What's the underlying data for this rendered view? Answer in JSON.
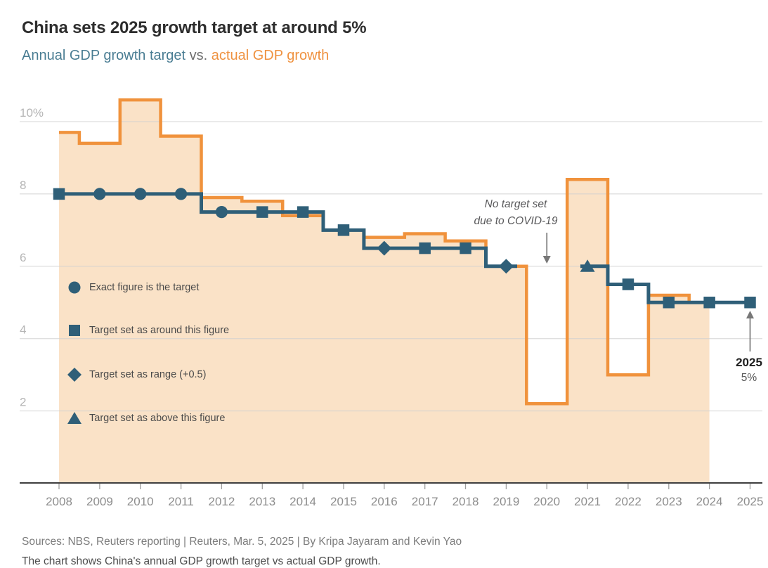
{
  "header": {
    "title": "China sets 2025 growth target at around 5%",
    "subtitle_target": "Annual GDP growth target",
    "subtitle_vs": " vs. ",
    "subtitle_actual": "actual GDP growth"
  },
  "palette": {
    "subtitle_target": "#4a7d93",
    "subtitle_actual": "#ef9240",
    "grid_line": "#cfcfcf",
    "axis_line": "#3f3f3f",
    "axis_tick": "#9e9e9e",
    "y_label": "#b5b5b5",
    "x_label": "#8d8d8d",
    "arrow": "#777777"
  },
  "chart_data": {
    "type": "line",
    "subtype": "center-step line with step-area",
    "x": [
      2008,
      2009,
      2010,
      2011,
      2012,
      2013,
      2014,
      2015,
      2016,
      2017,
      2018,
      2019,
      2020,
      2021,
      2022,
      2023,
      2024,
      2025
    ],
    "ylim": [
      0,
      10.6
    ],
    "grid": true,
    "yticks": [
      {
        "value": 10,
        "label": "10%"
      },
      {
        "value": 8,
        "label": "8"
      },
      {
        "value": 6,
        "label": "6"
      },
      {
        "value": 4,
        "label": "4"
      },
      {
        "value": 2,
        "label": "2"
      }
    ],
    "series": [
      {
        "name": "Annual GDP growth target",
        "color": "#2f5f78",
        "values": [
          8,
          8,
          8,
          8,
          7.5,
          7.5,
          7.5,
          7,
          6.5,
          6.5,
          6.5,
          6,
          null,
          6,
          5.5,
          5,
          5,
          5
        ],
        "markers": [
          "square",
          "circle",
          "circle",
          "circle",
          "circle",
          "square",
          "square",
          "square",
          "diamond",
          "square",
          "square",
          "diamond",
          null,
          "triangle",
          "square",
          "square",
          "square",
          "square"
        ],
        "gap_note": "no target set in 2020"
      },
      {
        "name": "actual GDP growth",
        "color": "#f0923c",
        "fill": "#fae2c7",
        "values": [
          9.7,
          9.4,
          10.6,
          9.6,
          7.9,
          7.8,
          7.4,
          7,
          6.8,
          6.9,
          6.7,
          6,
          2.2,
          8.4,
          3,
          5.2,
          5,
          null
        ]
      }
    ],
    "legend_position": "inside-left",
    "legend": [
      {
        "marker": "circle",
        "label": "Exact figure is the target"
      },
      {
        "marker": "square",
        "label": "Target set as around this figure"
      },
      {
        "marker": "diamond",
        "label": "Target set as range (+0.5)"
      },
      {
        "marker": "triangle",
        "label": "Target set as above this figure"
      }
    ],
    "annotations": {
      "covid": {
        "lines": [
          "No target set",
          "due to COVID-19"
        ],
        "year": 2020
      },
      "latest": {
        "title": "2025",
        "value": "5%",
        "year": 2025
      }
    }
  },
  "footer": {
    "sources": "Sources: NBS, Reuters reporting | Reuters, Mar. 5, 2025 | By Kripa Jayaram and Kevin Yao",
    "description": "The chart shows China's annual GDP growth target vs actual GDP growth."
  }
}
